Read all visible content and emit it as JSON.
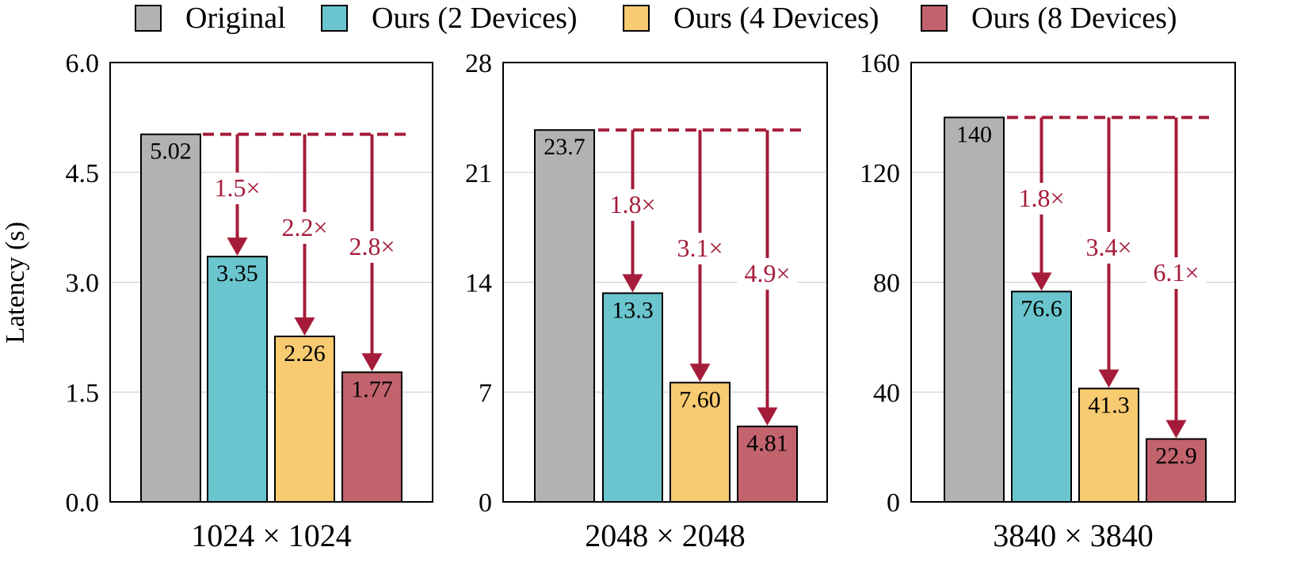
{
  "legend": {
    "items": [
      {
        "label": "Original",
        "color": "#b3b1b2"
      },
      {
        "label": "Ours (2 Devices)",
        "color": "#6ac5ce"
      },
      {
        "label": "Ours (4 Devices)",
        "color": "#f8cb71"
      },
      {
        "label": "Ours (8 Devices)",
        "color": "#c2636e"
      }
    ]
  },
  "annotation_color": "#a51c3a",
  "chart_data": [
    {
      "type": "bar",
      "xlabel": "1024 × 1024",
      "ylabel": "Latency (s)",
      "ylim": [
        0,
        6.0
      ],
      "yticks": [
        "0.0",
        "1.5",
        "3.0",
        "4.5",
        "6.0"
      ],
      "categories": [
        "Original",
        "Ours (2 Devices)",
        "Ours (4 Devices)",
        "Ours (8 Devices)"
      ],
      "values": [
        5.02,
        3.35,
        2.26,
        1.77
      ],
      "value_labels": [
        "5.02",
        "3.35",
        "2.26",
        "1.77"
      ],
      "speedups": [
        "1.5×",
        "2.2×",
        "2.8×"
      ],
      "grid": "horizontal"
    },
    {
      "type": "bar",
      "xlabel": "2048 × 2048",
      "ylabel": "",
      "ylim": [
        0,
        28
      ],
      "yticks": [
        "0",
        "7",
        "14",
        "21",
        "28"
      ],
      "categories": [
        "Original",
        "Ours (2 Devices)",
        "Ours (4 Devices)",
        "Ours (8 Devices)"
      ],
      "values": [
        23.7,
        13.3,
        7.6,
        4.81
      ],
      "value_labels": [
        "23.7",
        "13.3",
        "7.60",
        "4.81"
      ],
      "speedups": [
        "1.8×",
        "3.1×",
        "4.9×"
      ],
      "grid": "horizontal"
    },
    {
      "type": "bar",
      "xlabel": "3840 × 3840",
      "ylabel": "",
      "ylim": [
        0,
        160
      ],
      "yticks": [
        "0",
        "40",
        "80",
        "120",
        "160"
      ],
      "categories": [
        "Original",
        "Ours (2 Devices)",
        "Ours (4 Devices)",
        "Ours (8 Devices)"
      ],
      "values": [
        140,
        76.6,
        41.3,
        22.9
      ],
      "value_labels": [
        "140",
        "76.6",
        "41.3",
        "22.9"
      ],
      "speedups": [
        "1.8×",
        "3.4×",
        "6.1×"
      ],
      "grid": "horizontal"
    }
  ]
}
